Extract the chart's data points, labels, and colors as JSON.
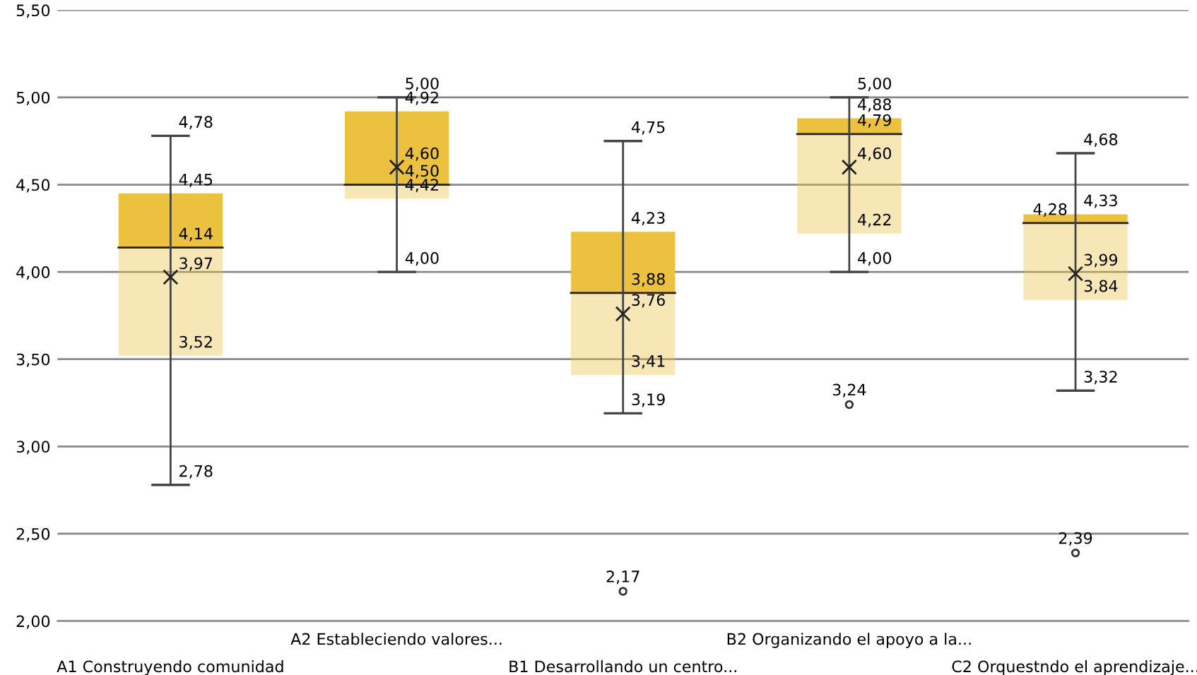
{
  "chart_data": {
    "type": "box",
    "categories": [
      "A1 Construyendo comunidad",
      "A2 Estableciendo valores...",
      "B1 Desarrollando un centro...",
      "B2 Organizando el apoyo a la...",
      "C2 Orquestndo el aprendizaje..."
    ],
    "boxes": [
      {
        "low": 2.78,
        "q1": 3.52,
        "median": 4.14,
        "q3": 4.45,
        "high": 4.78,
        "mean": 3.97
      },
      {
        "low": 4.0,
        "q1": 4.42,
        "median": 4.5,
        "q3": 4.92,
        "high": 5.0,
        "mean": 4.6
      },
      {
        "low": 3.19,
        "q1": 3.41,
        "median": 3.88,
        "q3": 4.23,
        "high": 4.75,
        "mean": 3.76,
        "outliers": [
          2.17
        ]
      },
      {
        "low": 4.0,
        "q1": 4.22,
        "median": 4.79,
        "q3": 4.88,
        "high": 5.0,
        "mean": 4.6,
        "outliers": [
          3.24
        ]
      },
      {
        "low": 3.32,
        "q1": 3.84,
        "median": 4.28,
        "q3": 4.33,
        "high": 4.68,
        "mean": 3.99,
        "outliers": [
          2.39
        ]
      }
    ],
    "colors": [
      "#ebc13f",
      "#ebc13f",
      "#ebc13f",
      "#ebc13f",
      "#ebc13f"
    ],
    "ylim": [
      2.0,
      5.5
    ],
    "yticks": [
      {
        "value": 2.0,
        "label": "2,00"
      },
      {
        "value": 2.5,
        "label": "2,50"
      },
      {
        "value": 3.0,
        "label": "3,00"
      },
      {
        "value": 3.5,
        "label": "3,50"
      },
      {
        "value": 4.0,
        "label": "4,00"
      },
      {
        "value": 4.5,
        "label": "4,50"
      },
      {
        "value": 5.0,
        "label": "5,00"
      },
      {
        "value": 5.5,
        "label": "5,50"
      }
    ],
    "grid": "y",
    "marker": "cross",
    "annotations": [
      {
        "text": "4,78",
        "x": "A1 Construyendo comunidad",
        "y": 4.78
      },
      {
        "text": "4,45",
        "x": "A1 Construyendo comunidad",
        "y": 4.45
      },
      {
        "text": "4,14",
        "x": "A1 Construyendo comunidad",
        "y": 4.14
      },
      {
        "text": "3,97",
        "x": "A1 Construyendo comunidad",
        "y": 3.97
      },
      {
        "text": "3,52",
        "x": "A1 Construyendo comunidad",
        "y": 3.52
      },
      {
        "text": "2,78",
        "x": "A1 Construyendo comunidad",
        "y": 2.78
      },
      {
        "text": "5,00",
        "x": "A2 Estableciendo valores...",
        "y": 5.0
      },
      {
        "text": "4,92",
        "x": "A2 Estableciendo valores...",
        "y": 4.92
      },
      {
        "text": "4,60",
        "x": "A2 Estableciendo valores...",
        "y": 4.6
      },
      {
        "text": "4,50",
        "x": "A2 Estableciendo valores...",
        "y": 4.5
      },
      {
        "text": "4,42",
        "x": "A2 Estableciendo valores...",
        "y": 4.42
      },
      {
        "text": "4,00",
        "x": "A2 Estableciendo valores...",
        "y": 4.0
      },
      {
        "text": "4,75",
        "x": "B1 Desarrollando un centro...",
        "y": 4.75
      },
      {
        "text": "4,23",
        "x": "B1 Desarrollando un centro...",
        "y": 4.23
      },
      {
        "text": "3,88",
        "x": "B1 Desarrollando un centro...",
        "y": 3.88
      },
      {
        "text": "3,76",
        "x": "B1 Desarrollando un centro...",
        "y": 3.76
      },
      {
        "text": "3,41",
        "x": "B1 Desarrollando un centro...",
        "y": 3.41
      },
      {
        "text": "3,19",
        "x": "B1 Desarrollando un centro...",
        "y": 3.19
      },
      "2,17",
      {
        "text": "5,00",
        "x": "B2 Organizando el apoyo a la...",
        "y": 5.0
      },
      {
        "text": "4,88",
        "x": "B2 Organizando el apoyo a la...",
        "y": 4.88
      },
      {
        "text": "4,79",
        "x": "B2 Organizando el apoyo a la...",
        "y": 4.79
      },
      {
        "text": "4,60",
        "x": "B2 Organizando el apoyo a la...",
        "y": 4.6
      },
      {
        "text": "4,22",
        "x": "B2 Organizando el apoyo a la...",
        "y": 4.22
      },
      {
        "text": "4,00",
        "x": "B2 Organizando el apoyo a la...",
        "y": 4.0
      },
      "3,24",
      {
        "text": "4,68",
        "x": "C2 Orquestndo el aprendizaje...",
        "y": 4.68
      },
      {
        "text": "4,33",
        "x": "C2 Orquestndo el aprendizaje...",
        "y": 4.33
      },
      {
        "text": "4,28",
        "x": "C2 Orquestndo el aprendizaje...",
        "y": 4.28
      },
      {
        "text": "3,99",
        "x": "C2 Orquestndo el aprendizaje...",
        "y": 3.99
      },
      {
        "text": "3,84",
        "x": "C2 Orquestndo el aprendizaje...",
        "y": 3.84
      },
      {
        "text": "3,32",
        "x": "C2 Orquestndo el aprendizaje...",
        "y": 3.32
      },
      "2,39"
    ]
  }
}
